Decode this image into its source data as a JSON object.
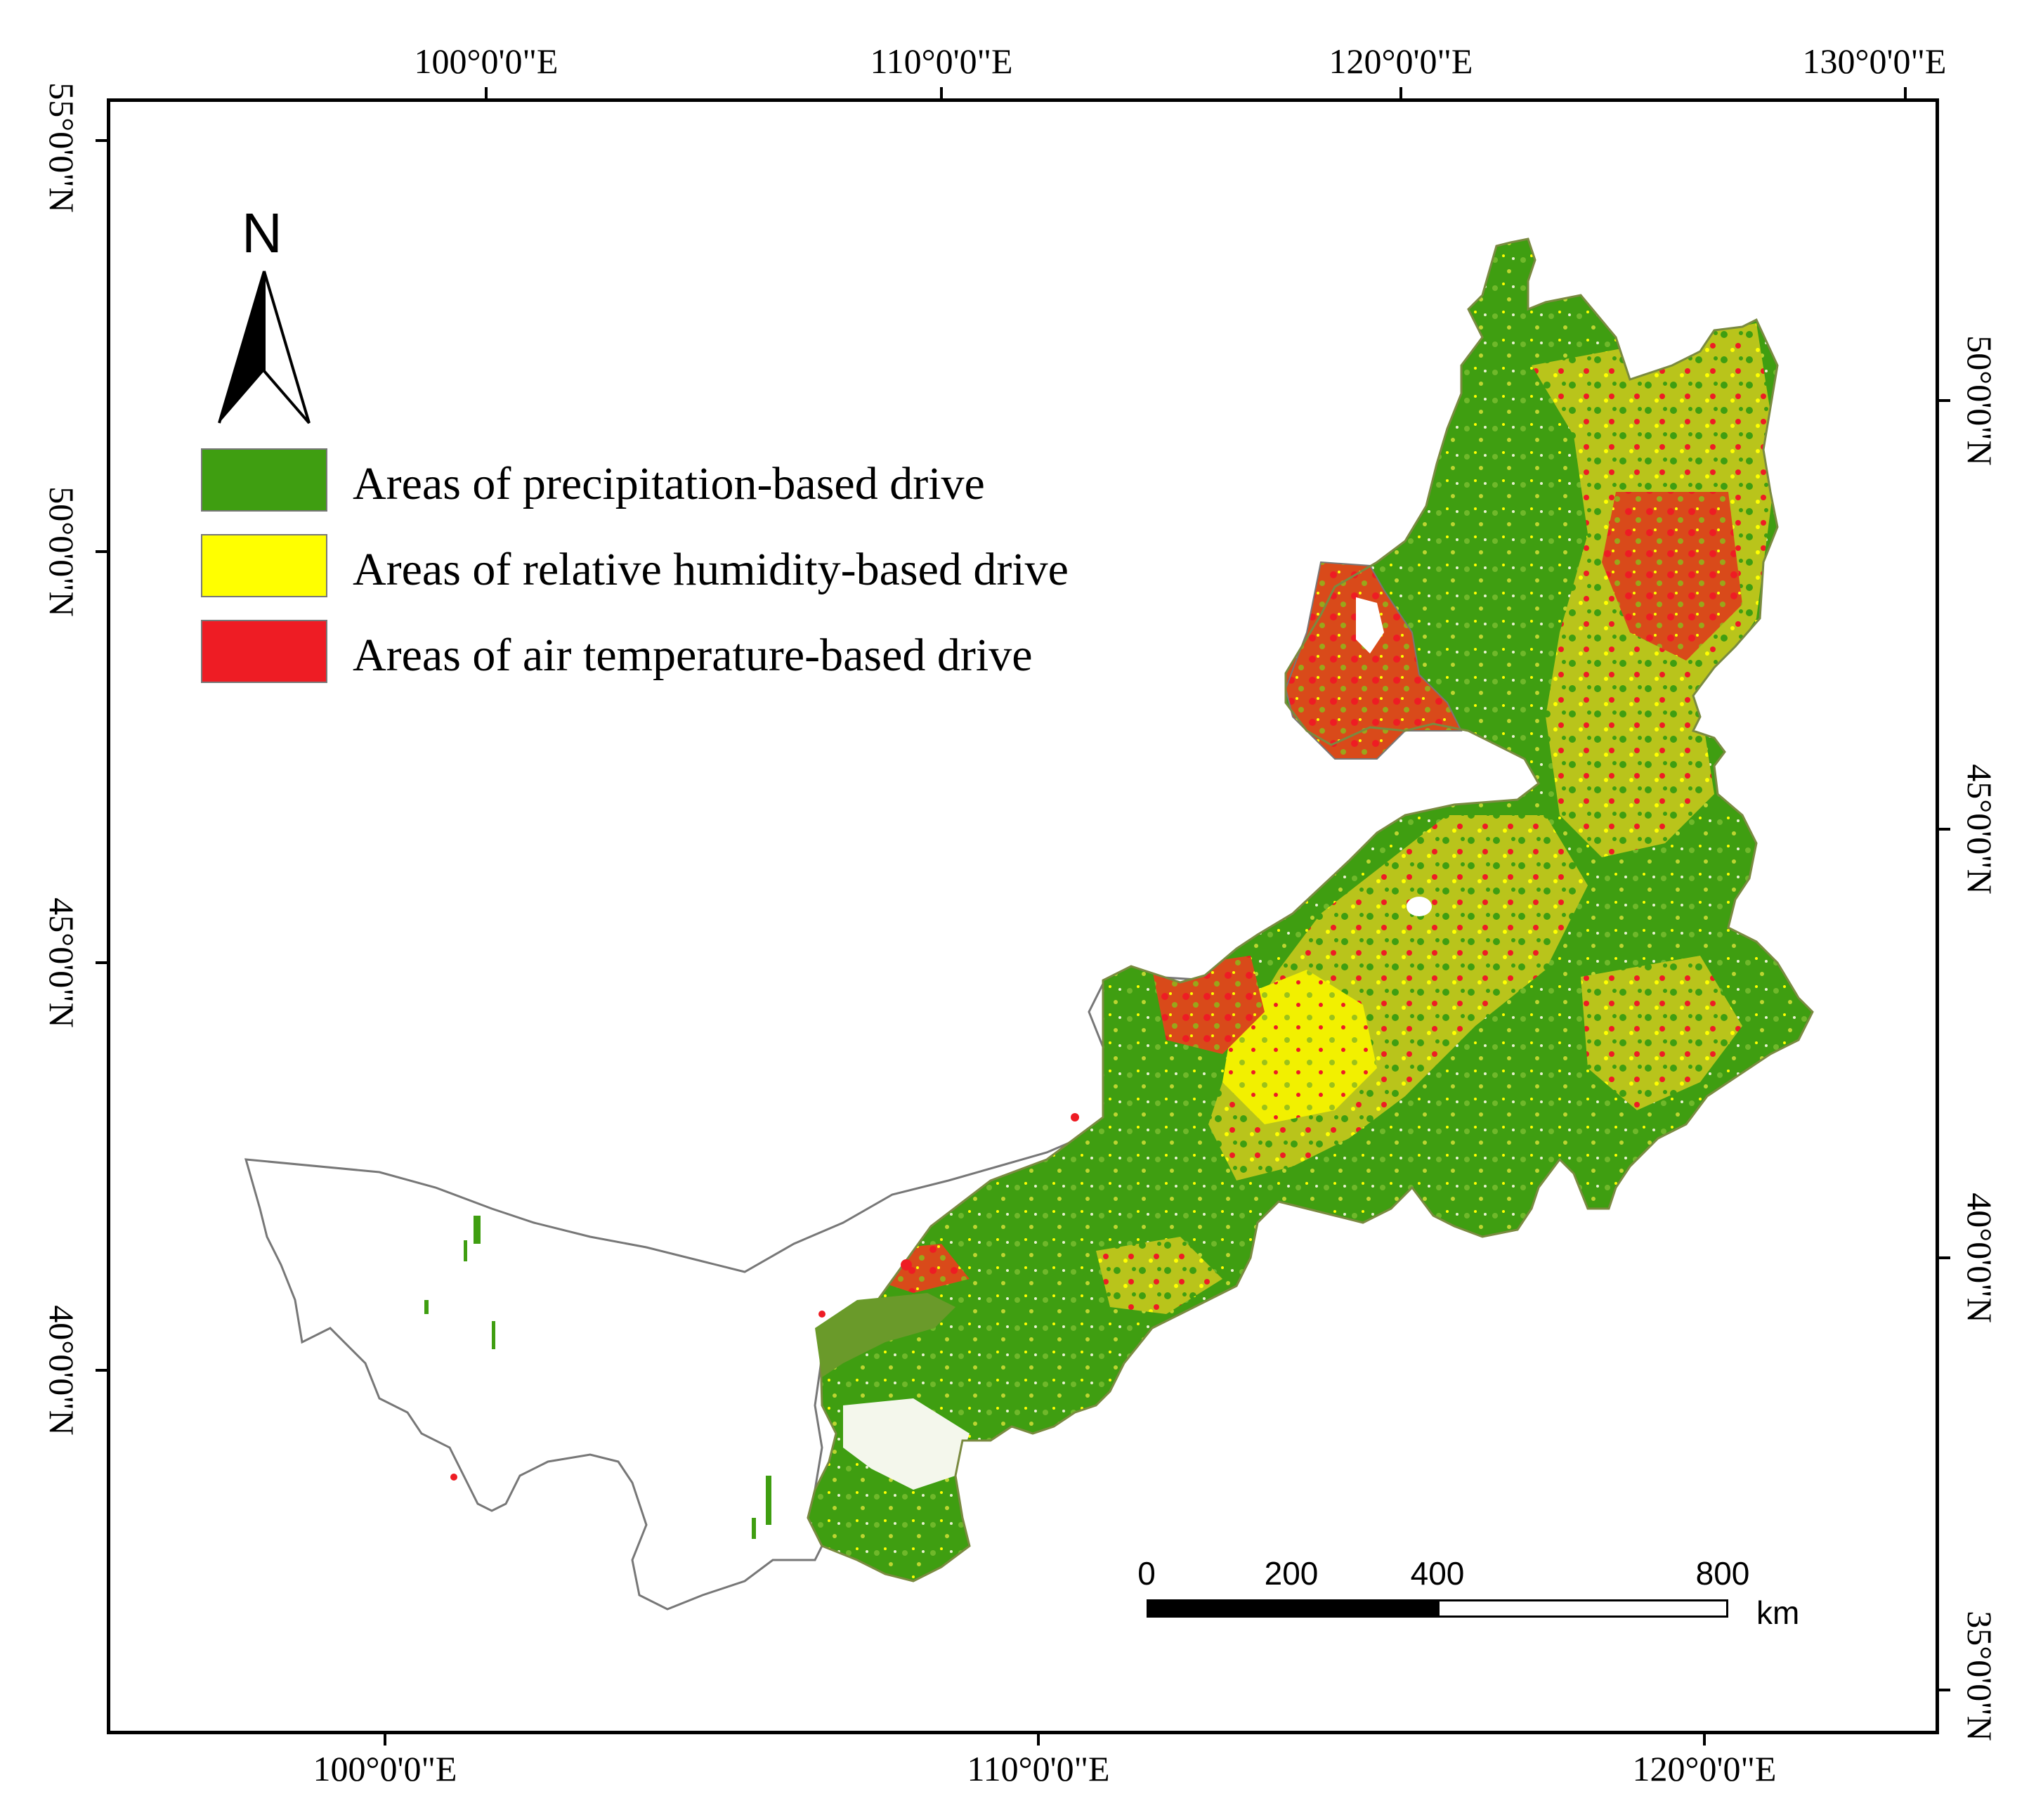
{
  "axes": {
    "top_lon_labels": [
      "100°0'0\"E",
      "110°0'0\"E",
      "120°0'0\"E",
      "130°0'0\"E"
    ],
    "bottom_lon_labels": [
      "100°0'0\"E",
      "110°0'0\"E",
      "120°0'0\"E"
    ],
    "left_lat_labels": [
      "55°0'0\"N",
      "50°0'0\"N",
      "45°0'0\"N",
      "40°0'0\"N"
    ],
    "right_lat_labels": [
      "50°0'0\"N",
      "45°0'0\"N",
      "40°0'0\"N",
      "35°0'0\"N"
    ]
  },
  "north_arrow": {
    "letter": "N",
    "icon": "north-arrow-icon"
  },
  "legend": {
    "items": [
      {
        "label": "Areas of precipitation-based drive",
        "color": "#3f9e11"
      },
      {
        "label": "Areas of relative humidity-based drive",
        "color": "#ffff00"
      },
      {
        "label": "Areas of air temperature-based drive",
        "color": "#ee1c24"
      }
    ]
  },
  "scale_bar": {
    "ticks": [
      "0",
      "200",
      "400",
      "800"
    ],
    "unit": "km"
  },
  "map": {
    "region_outline_color": "#777777",
    "classes": {
      "precipitation": "#3f9e11",
      "humidity": "#ffff00",
      "temperature": "#ee1c24"
    }
  }
}
